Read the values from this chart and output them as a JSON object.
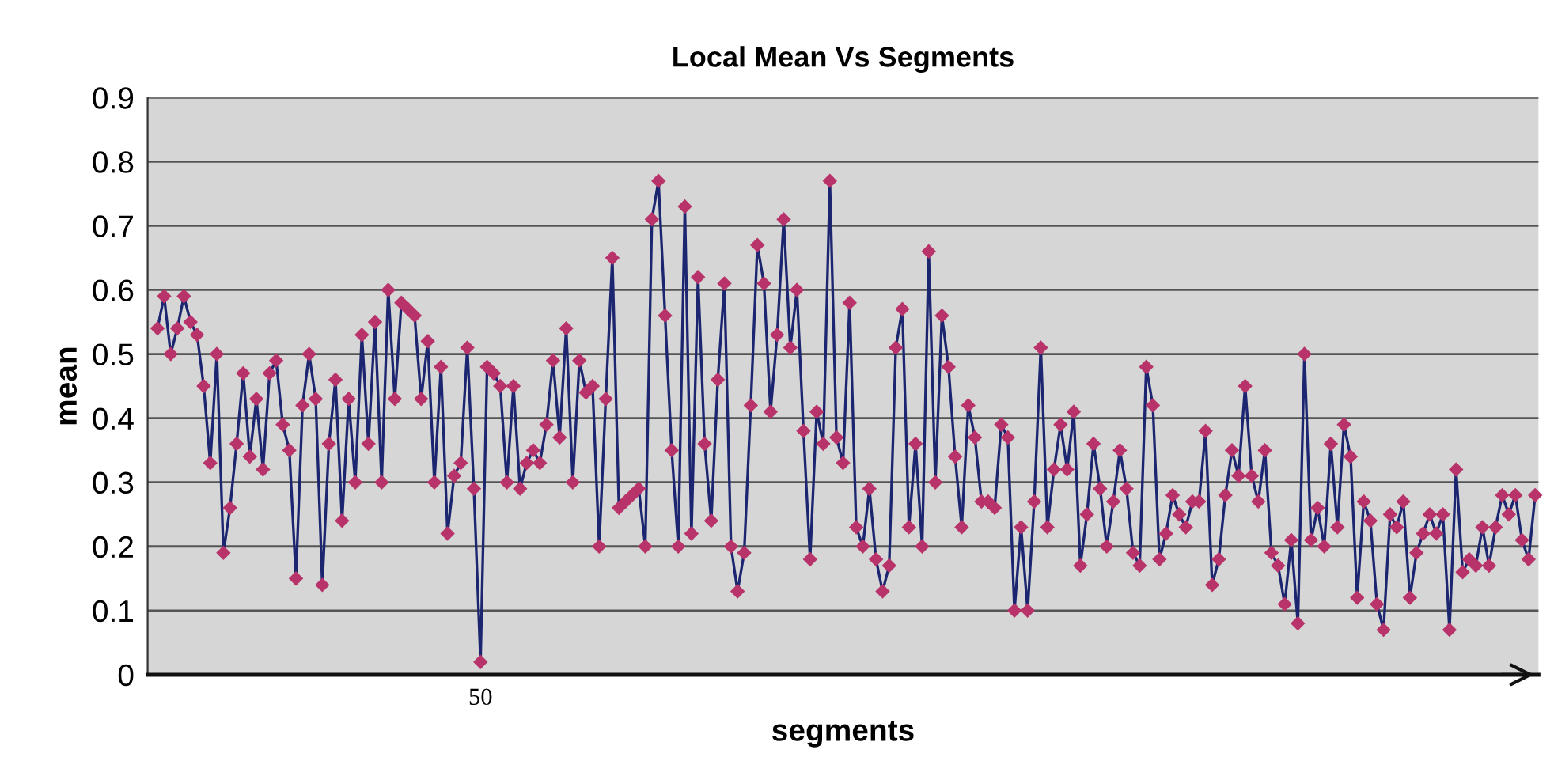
{
  "chart_data": {
    "type": "line",
    "title": "Local Mean Vs Segments",
    "xlabel": "segments",
    "ylabel": "mean",
    "categories": [
      null,
      null,
      null,
      null,
      null,
      null,
      null,
      null,
      null,
      null,
      null,
      null,
      null,
      null,
      null,
      null,
      null,
      null,
      null,
      null,
      null,
      null,
      null,
      null,
      null,
      null,
      null,
      null,
      null,
      null,
      null,
      null,
      null,
      null,
      null,
      null,
      null,
      null,
      null,
      null,
      null,
      null,
      null,
      null,
      null,
      null,
      null,
      null,
      null,
      "50",
      null,
      null,
      null,
      null,
      null,
      null,
      null,
      null,
      null,
      null,
      null,
      null,
      null,
      null,
      null,
      null,
      null,
      null,
      null,
      null,
      null,
      null,
      null,
      null,
      null,
      null,
      null,
      null,
      null,
      null,
      null,
      null,
      null,
      null,
      null,
      null,
      null,
      null,
      null,
      null,
      null,
      null,
      null,
      null,
      null,
      null,
      null,
      null,
      null,
      null,
      null,
      null,
      null,
      null,
      null,
      null,
      null,
      null,
      null,
      null,
      null,
      null,
      null,
      null,
      null,
      null,
      null,
      null,
      null,
      null,
      null,
      null,
      null,
      null,
      null,
      null,
      null,
      null,
      null,
      null,
      null,
      null,
      null,
      null,
      null,
      null,
      null,
      null,
      null,
      null,
      null,
      null,
      null,
      null,
      null,
      null,
      null,
      null,
      null,
      null,
      null,
      null,
      null,
      null,
      null,
      null,
      null,
      null,
      null,
      null,
      null,
      null,
      null,
      null,
      null,
      null,
      null,
      null,
      null,
      null,
      null,
      null,
      null,
      null,
      null,
      null,
      null,
      null,
      null,
      null,
      null,
      null,
      null,
      null,
      null,
      null,
      null,
      null,
      null,
      null,
      null,
      null,
      null,
      null,
      null,
      null,
      null,
      null,
      null,
      null,
      null,
      null,
      null,
      null,
      null,
      null,
      null,
      null,
      null,
      null
    ],
    "series": [
      {
        "color": "#1c2670",
        "values": [
          0.54,
          0.59,
          0.5,
          0.54,
          0.59,
          0.55,
          0.53,
          0.45,
          0.33,
          0.5,
          0.19,
          0.26,
          0.36,
          0.47,
          0.34,
          0.43,
          0.32,
          0.47,
          0.49,
          0.39,
          0.35,
          0.15,
          0.42,
          0.5,
          0.43,
          0.14,
          0.36,
          0.46,
          0.24,
          0.43,
          0.3,
          0.53,
          0.36,
          0.55,
          0.3,
          0.6,
          0.43,
          0.58,
          0.57,
          0.56,
          0.43,
          0.52,
          0.3,
          0.48,
          0.22,
          0.31,
          0.33,
          0.51,
          0.29,
          0.02,
          0.48,
          0.47,
          0.45,
          0.3,
          0.45,
          0.29,
          0.33,
          0.35,
          0.33,
          0.39,
          0.49,
          0.37,
          0.54,
          0.3,
          0.49,
          0.44,
          0.45,
          0.2,
          0.43,
          0.65,
          0.26,
          0.27,
          0.28,
          0.29,
          0.2,
          0.71,
          0.77,
          0.56,
          0.35,
          0.2,
          0.73,
          0.22,
          0.62,
          0.36,
          0.24,
          0.46,
          0.61,
          0.2,
          0.13,
          0.19,
          0.42,
          0.67,
          0.61,
          0.41,
          0.53,
          0.71,
          0.51,
          0.6,
          0.38,
          0.18,
          0.41,
          0.36,
          0.77,
          0.37,
          0.33,
          0.58,
          0.23,
          0.2,
          0.29,
          0.18,
          0.13,
          0.17,
          0.51,
          0.57,
          0.23,
          0.36,
          0.2,
          0.66,
          0.3,
          0.56,
          0.48,
          0.34,
          0.23,
          0.42,
          0.37,
          0.27,
          0.27,
          0.26,
          0.39,
          0.37,
          0.1,
          0.23,
          0.1,
          0.27,
          0.51,
          0.23,
          0.32,
          0.39,
          0.32,
          0.41,
          0.17,
          0.25,
          0.36,
          0.29,
          0.2,
          0.27,
          0.35,
          0.29,
          0.19,
          0.17,
          0.48,
          0.42,
          0.18,
          0.22,
          0.28,
          0.25,
          0.23,
          0.27,
          0.27,
          0.38,
          0.14,
          0.18,
          0.28,
          0.35,
          0.31,
          0.45,
          0.31,
          0.27,
          0.35,
          0.19,
          0.17,
          0.11,
          0.21,
          0.08,
          0.5,
          0.21,
          0.26,
          0.2,
          0.36,
          0.23,
          0.39,
          0.34,
          0.12,
          0.27,
          0.24,
          0.11,
          0.07,
          0.25,
          0.23,
          0.27,
          0.12,
          0.19,
          0.22,
          0.25,
          0.22,
          0.25,
          0.07,
          0.32,
          0.16,
          0.18,
          0.17,
          0.23,
          0.17,
          0.23,
          0.28,
          0.25,
          0.28,
          0.21,
          0.18,
          0.28
        ]
      }
    ],
    "ylim": [
      0,
      0.9
    ],
    "yticks": [
      {
        "value": 0,
        "label": "0"
      },
      {
        "value": 0.1,
        "label": "0.1"
      },
      {
        "value": 0.2,
        "label": "0.2"
      },
      {
        "value": 0.3,
        "label": "0.3"
      },
      {
        "value": 0.4,
        "label": "0.4"
      },
      {
        "value": 0.5,
        "label": "0.5"
      },
      {
        "value": 0.6,
        "label": "0.6"
      },
      {
        "value": 0.7,
        "label": "0.7"
      },
      {
        "value": 0.8,
        "label": "0.8"
      },
      {
        "value": 0.9,
        "label": "0.9"
      }
    ],
    "grid": "y",
    "marker": "diamond",
    "line_style": "solid"
  }
}
